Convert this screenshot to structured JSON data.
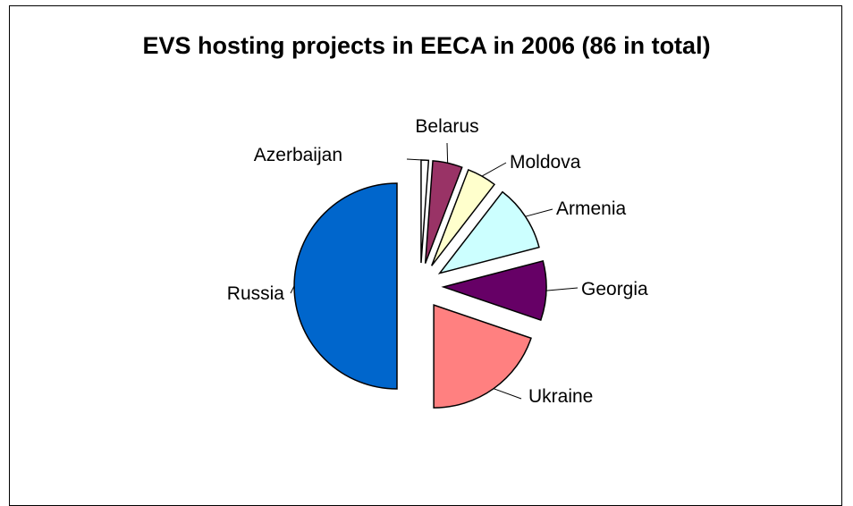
{
  "chart_data": {
    "type": "pie",
    "title": "EVS hosting projects in EECA in 2006 (86 in total)",
    "exploded": true,
    "start_angle_deg": 0,
    "direction": "clockwise",
    "categories": [
      "Azerbaijan",
      "Belarus",
      "Moldova",
      "Armenia",
      "Georgia",
      "Ukraine",
      "Russia"
    ],
    "values": [
      1,
      4,
      4,
      9,
      8,
      17,
      43
    ],
    "colors": [
      "#ffffff",
      "#993366",
      "#ffffcc",
      "#ccffff",
      "#660066",
      "#ff8080",
      "#0066cc"
    ],
    "legend": "none"
  }
}
